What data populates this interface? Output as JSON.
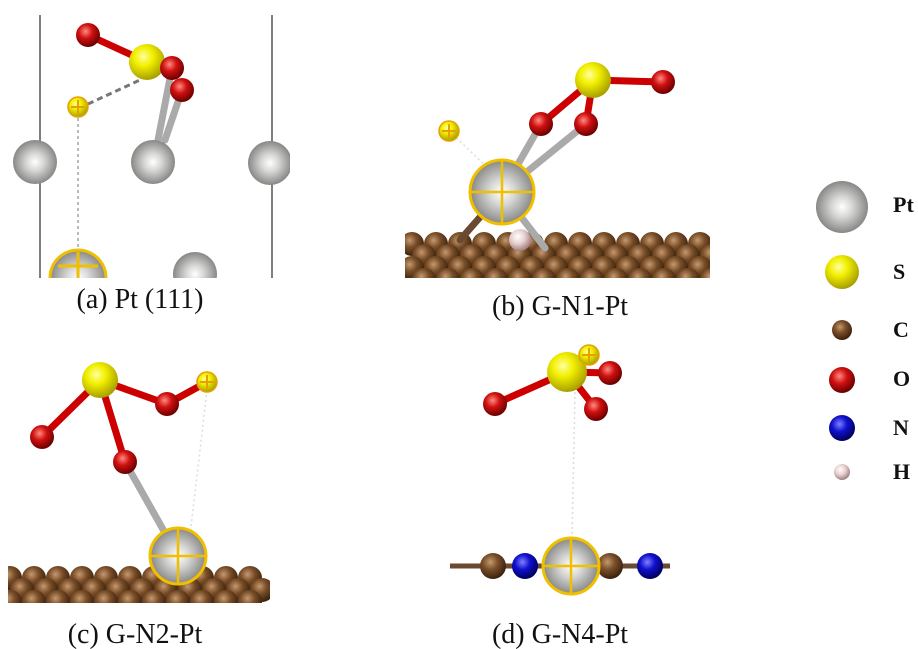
{
  "panels": [
    {
      "caption": "(a) Pt (111)"
    },
    {
      "caption": "(b) G-N1-Pt"
    },
    {
      "caption": "(c) G-N2-Pt"
    },
    {
      "caption": "(d) G-N4-Pt"
    }
  ],
  "legend": [
    {
      "label": "Pt"
    },
    {
      "label": "S"
    },
    {
      "label": "C"
    },
    {
      "label": "O"
    },
    {
      "label": "N"
    },
    {
      "label": "H"
    }
  ]
}
